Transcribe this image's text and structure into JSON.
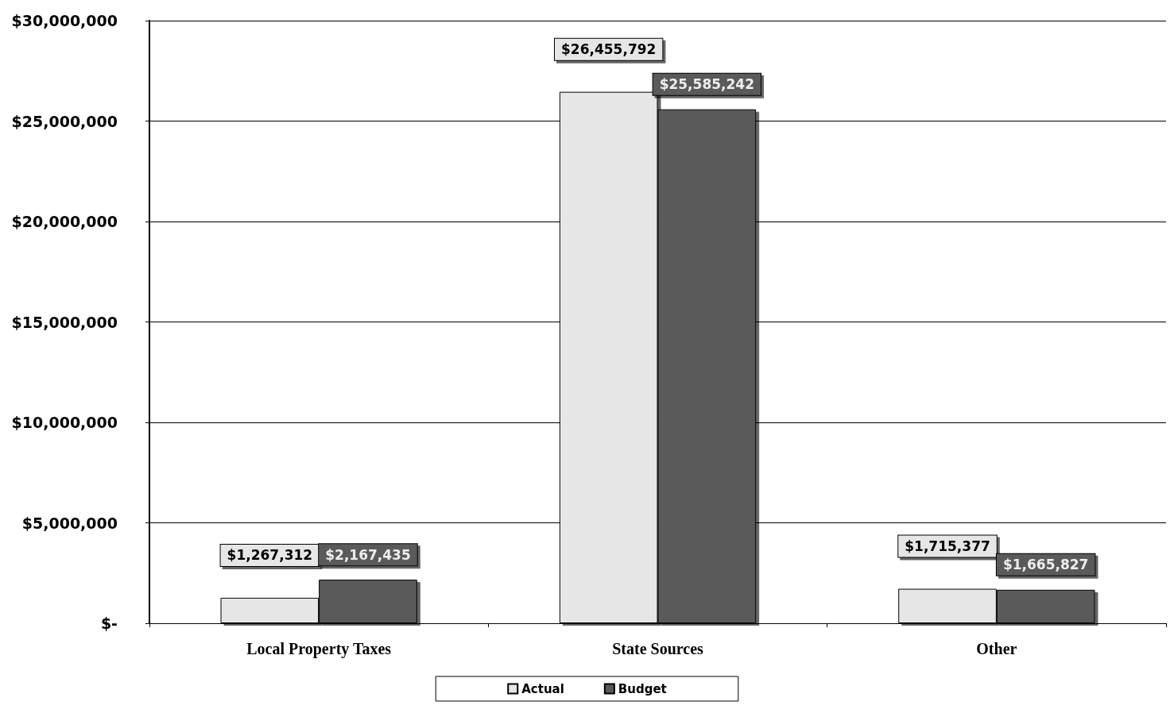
{
  "chart_data": {
    "type": "bar",
    "categories": [
      "Local Property Taxes",
      "State Sources",
      "Other"
    ],
    "series": [
      {
        "name": "Actual",
        "color": "#e6e6e6",
        "values": [
          1267312,
          26455792,
          1715377
        ],
        "value_labels": [
          "$1,267,312",
          "$26,455,792",
          "$1,715,377"
        ]
      },
      {
        "name": "Budget",
        "color": "#5a5a5a",
        "values": [
          2167435,
          25585242,
          1665827
        ],
        "value_labels": [
          "$2,167,435",
          "$25,585,242",
          "$1,665,827"
        ]
      }
    ],
    "ylim": [
      0,
      30000000
    ],
    "yticks": [
      {
        "value": 0,
        "label": "$-"
      },
      {
        "value": 5000000,
        "label": "$5,000,000"
      },
      {
        "value": 10000000,
        "label": "$10,000,000"
      },
      {
        "value": 15000000,
        "label": "$15,000,000"
      },
      {
        "value": 20000000,
        "label": "$20,000,000"
      },
      {
        "value": 25000000,
        "label": "$25,000,000"
      },
      {
        "value": 30000000,
        "label": "$30,000,000"
      }
    ],
    "grid": "y",
    "legend": "bottom"
  }
}
